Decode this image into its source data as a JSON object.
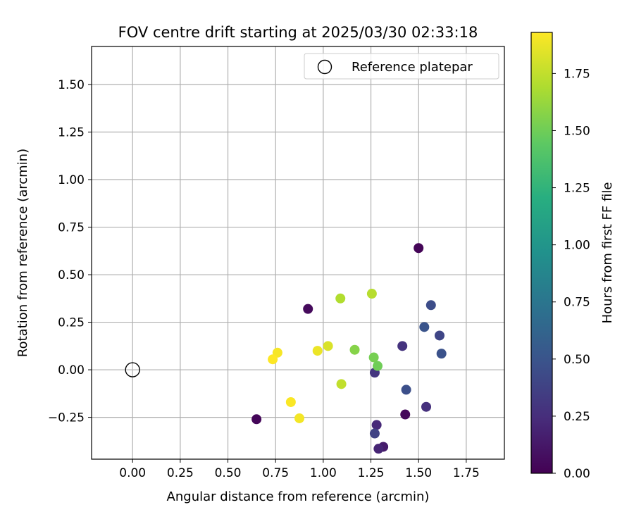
{
  "chart_data": {
    "type": "scatter",
    "title": "FOV centre drift starting at 2025/03/30 02:33:18",
    "xlabel": "Angular distance from reference (arcmin)",
    "ylabel": "Rotation from reference (arcmin)",
    "xlim": [
      -0.215,
      1.95
    ],
    "ylim": [
      -0.47,
      1.7
    ],
    "xticks": [
      0.0,
      0.25,
      0.5,
      0.75,
      1.0,
      1.25,
      1.5,
      1.75
    ],
    "xtick_labels": [
      "0.00",
      "0.25",
      "0.50",
      "0.75",
      "1.00",
      "1.25",
      "1.50",
      "1.75"
    ],
    "yticks": [
      -0.25,
      0.0,
      0.25,
      0.5,
      0.75,
      1.0,
      1.25,
      1.5
    ],
    "ytick_labels": [
      "−0.25",
      "0.00",
      "0.25",
      "0.50",
      "0.75",
      "1.00",
      "1.25",
      "1.50"
    ],
    "grid": true,
    "legend": {
      "placement": "top-right",
      "entries": [
        {
          "label": "Reference platepar",
          "marker": "open-circle"
        }
      ]
    },
    "reference_point": {
      "x": 0.0,
      "y": 0.0
    },
    "colorbar": {
      "label": "Hours from first FF file",
      "colormap": "viridis",
      "range": [
        0.0,
        1.93
      ],
      "ticks": [
        0.0,
        0.25,
        0.5,
        0.75,
        1.0,
        1.25,
        1.5,
        1.75
      ],
      "tick_labels": [
        "0.00",
        "0.25",
        "0.50",
        "0.75",
        "1.00",
        "1.25",
        "1.50",
        "1.75"
      ]
    },
    "series": [
      {
        "points": [
          {
            "x": 1.5,
            "y": 0.64,
            "hours": 0.02
          },
          {
            "x": 0.92,
            "y": 0.32,
            "hours": 0.05
          },
          {
            "x": 0.65,
            "y": -0.26,
            "hours": 0.03
          },
          {
            "x": 1.43,
            "y": -0.235,
            "hours": 0.04
          },
          {
            "x": 1.315,
            "y": -0.405,
            "hours": 0.14
          },
          {
            "x": 1.29,
            "y": -0.415,
            "hours": 0.2
          },
          {
            "x": 1.28,
            "y": -0.29,
            "hours": 0.22
          },
          {
            "x": 1.27,
            "y": -0.335,
            "hours": 0.38
          },
          {
            "x": 1.27,
            "y": -0.015,
            "hours": 0.3
          },
          {
            "x": 1.415,
            "y": 0.125,
            "hours": 0.28
          },
          {
            "x": 1.54,
            "y": -0.195,
            "hours": 0.27
          },
          {
            "x": 1.435,
            "y": -0.105,
            "hours": 0.46
          },
          {
            "x": 1.565,
            "y": 0.34,
            "hours": 0.45
          },
          {
            "x": 1.53,
            "y": 0.225,
            "hours": 0.5
          },
          {
            "x": 1.61,
            "y": 0.18,
            "hours": 0.4
          },
          {
            "x": 1.62,
            "y": 0.085,
            "hours": 0.48
          },
          {
            "x": 1.285,
            "y": 0.02,
            "hours": 1.5
          },
          {
            "x": 1.265,
            "y": 0.065,
            "hours": 1.52
          },
          {
            "x": 1.165,
            "y": 0.105,
            "hours": 1.57
          },
          {
            "x": 1.09,
            "y": 0.375,
            "hours": 1.7
          },
          {
            "x": 1.255,
            "y": 0.4,
            "hours": 1.72
          },
          {
            "x": 1.095,
            "y": -0.075,
            "hours": 1.75
          },
          {
            "x": 1.025,
            "y": 0.125,
            "hours": 1.82
          },
          {
            "x": 0.97,
            "y": 0.1,
            "hours": 1.88
          },
          {
            "x": 0.76,
            "y": 0.09,
            "hours": 1.91
          },
          {
            "x": 0.735,
            "y": 0.055,
            "hours": 1.93
          },
          {
            "x": 0.83,
            "y": -0.17,
            "hours": 1.92
          },
          {
            "x": 0.875,
            "y": -0.255,
            "hours": 1.9
          }
        ]
      }
    ]
  }
}
